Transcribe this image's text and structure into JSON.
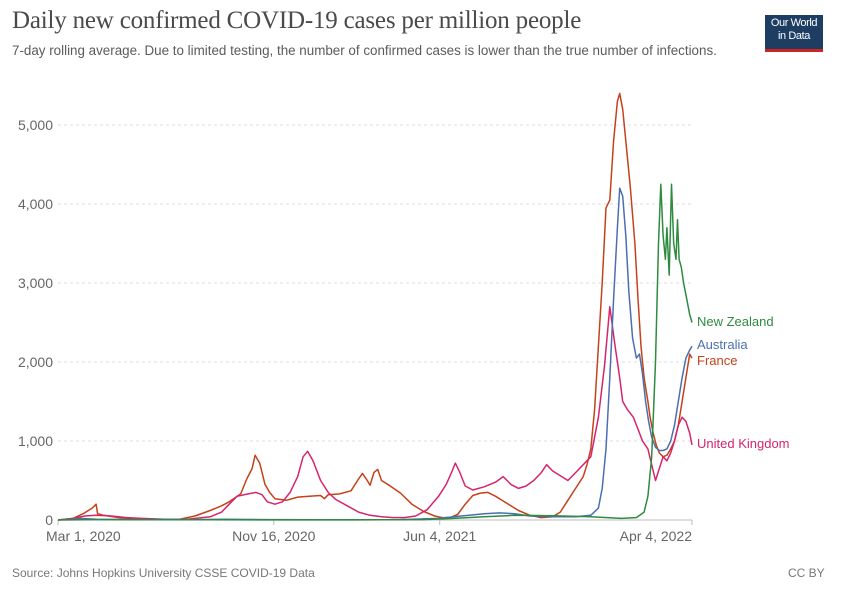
{
  "header": {
    "title": "Daily new confirmed COVID-19 cases per million people",
    "subtitle": "7-day rolling average. Due to limited testing, the number of confirmed cases is lower than the true number of infections.",
    "logo_line1": "Our World",
    "logo_line2": "in Data"
  },
  "footer": {
    "source": "Source: Johns Hopkins University CSSE COVID-19 Data",
    "license": "CC BY"
  },
  "colors": {
    "new_zealand": "#2e8b3f",
    "australia": "#4c6fb0",
    "france": "#c4421a",
    "united_kingdom": "#d6246e",
    "logo_bg": "#1d3d63",
    "logo_bar": "#ce261e"
  },
  "chart_data": {
    "type": "line",
    "title": "Daily new confirmed COVID-19 cases per million people",
    "subtitle": "7-day rolling average. Due to limited testing, the number of confirmed cases is lower than the true number of infections.",
    "xlabel": "",
    "ylabel": "",
    "x_unit": "days since Mar 1, 2020",
    "xlim": [
      0,
      764
    ],
    "ylim": [
      0,
      5500
    ],
    "grid": true,
    "legend": "inline-right",
    "x_ticks": [
      {
        "day": 0,
        "label": "Mar 1, 2020"
      },
      {
        "day": 260,
        "label": "Nov 16, 2020"
      },
      {
        "day": 460,
        "label": "Jun 4, 2021"
      },
      {
        "day": 764,
        "label": "Apr 4, 2022"
      }
    ],
    "y_ticks": [
      {
        "value": 0,
        "label": "0"
      },
      {
        "value": 1000,
        "label": "1,000"
      },
      {
        "value": 2000,
        "label": "2,000"
      },
      {
        "value": 3000,
        "label": "3,000"
      },
      {
        "value": 4000,
        "label": "4,000"
      },
      {
        "value": 5000,
        "label": "5,000"
      }
    ],
    "series": [
      {
        "name": "France",
        "key": "france",
        "label": "France",
        "points": [
          [
            0,
            0
          ],
          [
            20,
            20
          ],
          [
            35,
            90
          ],
          [
            45,
            150
          ],
          [
            50,
            200
          ],
          [
            52,
            80
          ],
          [
            60,
            60
          ],
          [
            80,
            30
          ],
          [
            100,
            10
          ],
          [
            130,
            5
          ],
          [
            160,
            10
          ],
          [
            180,
            50
          ],
          [
            200,
            120
          ],
          [
            215,
            180
          ],
          [
            225,
            230
          ],
          [
            240,
            330
          ],
          [
            248,
            520
          ],
          [
            255,
            650
          ],
          [
            259,
            820
          ],
          [
            265,
            720
          ],
          [
            272,
            450
          ],
          [
            278,
            350
          ],
          [
            285,
            270
          ],
          [
            300,
            250
          ],
          [
            315,
            290
          ],
          [
            330,
            300
          ],
          [
            345,
            310
          ],
          [
            350,
            270
          ],
          [
            355,
            320
          ],
          [
            370,
            330
          ],
          [
            385,
            370
          ],
          [
            395,
            520
          ],
          [
            400,
            590
          ],
          [
            405,
            520
          ],
          [
            410,
            440
          ],
          [
            415,
            600
          ],
          [
            420,
            640
          ],
          [
            425,
            500
          ],
          [
            435,
            440
          ],
          [
            450,
            340
          ],
          [
            465,
            200
          ],
          [
            480,
            110
          ],
          [
            495,
            50
          ],
          [
            505,
            30
          ],
          [
            515,
            30
          ],
          [
            525,
            70
          ],
          [
            535,
            200
          ],
          [
            545,
            310
          ],
          [
            555,
            340
          ],
          [
            565,
            350
          ],
          [
            575,
            300
          ],
          [
            585,
            240
          ],
          [
            595,
            180
          ],
          [
            605,
            120
          ],
          [
            620,
            60
          ],
          [
            635,
            30
          ],
          [
            650,
            40
          ],
          [
            660,
            100
          ],
          [
            670,
            250
          ],
          [
            680,
            400
          ],
          [
            690,
            550
          ],
          [
            695,
            700
          ],
          [
            700,
            900
          ],
          [
            705,
            1400
          ],
          [
            710,
            2200
          ],
          [
            715,
            3000
          ],
          [
            720,
            3950
          ],
          [
            725,
            4050
          ],
          [
            730,
            4800
          ],
          [
            735,
            5300
          ],
          [
            738,
            5400
          ],
          [
            742,
            5200
          ],
          [
            746,
            4800
          ],
          [
            752,
            4200
          ],
          [
            758,
            3500
          ],
          [
            762,
            2800
          ],
          [
            766,
            2200
          ],
          [
            770,
            1800
          ],
          [
            775,
            1500
          ],
          [
            778,
            1300
          ],
          [
            782,
            1100
          ],
          [
            786,
            950
          ],
          [
            790,
            850
          ],
          [
            795,
            800
          ],
          [
            800,
            820
          ],
          [
            805,
            900
          ],
          [
            810,
            1000
          ],
          [
            815,
            1200
          ],
          [
            820,
            1500
          ],
          [
            825,
            1800
          ],
          [
            830,
            2100
          ],
          [
            833,
            2050
          ]
        ]
      },
      {
        "name": "Australia",
        "key": "australia",
        "label": "Australia",
        "points": [
          [
            0,
            0
          ],
          [
            20,
            10
          ],
          [
            30,
            20
          ],
          [
            50,
            10
          ],
          [
            100,
            5
          ],
          [
            150,
            10
          ],
          [
            180,
            5
          ],
          [
            220,
            10
          ],
          [
            280,
            5
          ],
          [
            350,
            3
          ],
          [
            400,
            3
          ],
          [
            450,
            5
          ],
          [
            500,
            20
          ],
          [
            530,
            50
          ],
          [
            560,
            80
          ],
          [
            580,
            90
          ],
          [
            600,
            80
          ],
          [
            620,
            50
          ],
          [
            650,
            40
          ],
          [
            680,
            40
          ],
          [
            700,
            60
          ],
          [
            710,
            150
          ],
          [
            715,
            400
          ],
          [
            720,
            900
          ],
          [
            725,
            1800
          ],
          [
            730,
            2800
          ],
          [
            735,
            3700
          ],
          [
            738,
            4200
          ],
          [
            742,
            4100
          ],
          [
            746,
            3600
          ],
          [
            750,
            2900
          ],
          [
            755,
            2300
          ],
          [
            760,
            2050
          ],
          [
            764,
            2100
          ],
          [
            768,
            1850
          ],
          [
            772,
            1500
          ],
          [
            776,
            1250
          ],
          [
            780,
            1050
          ],
          [
            785,
            920
          ],
          [
            790,
            880
          ],
          [
            795,
            880
          ],
          [
            800,
            900
          ],
          [
            805,
            1000
          ],
          [
            810,
            1200
          ],
          [
            815,
            1500
          ],
          [
            820,
            1800
          ],
          [
            825,
            2050
          ],
          [
            830,
            2150
          ],
          [
            833,
            2200
          ]
        ]
      },
      {
        "name": "New Zealand",
        "key": "new_zealand",
        "label": "New Zealand",
        "points": [
          [
            0,
            0
          ],
          [
            50,
            5
          ],
          [
            100,
            3
          ],
          [
            200,
            2
          ],
          [
            300,
            1
          ],
          [
            400,
            1
          ],
          [
            480,
            5
          ],
          [
            520,
            20
          ],
          [
            560,
            40
          ],
          [
            600,
            60
          ],
          [
            650,
            55
          ],
          [
            700,
            40
          ],
          [
            740,
            20
          ],
          [
            760,
            30
          ],
          [
            770,
            100
          ],
          [
            775,
            300
          ],
          [
            780,
            800
          ],
          [
            785,
            2000
          ],
          [
            789,
            3500
          ],
          [
            792,
            4250
          ],
          [
            795,
            3600
          ],
          [
            798,
            3300
          ],
          [
            800,
            3700
          ],
          [
            803,
            3100
          ],
          [
            806,
            4250
          ],
          [
            809,
            3500
          ],
          [
            812,
            3300
          ],
          [
            814,
            3800
          ],
          [
            816,
            3300
          ],
          [
            819,
            3200
          ],
          [
            822,
            3000
          ],
          [
            826,
            2800
          ],
          [
            830,
            2600
          ],
          [
            833,
            2500
          ]
        ]
      },
      {
        "name": "United Kingdom",
        "key": "united_kingdom",
        "label": "United Kingdom",
        "points": [
          [
            0,
            0
          ],
          [
            20,
            20
          ],
          [
            35,
            50
          ],
          [
            50,
            60
          ],
          [
            70,
            50
          ],
          [
            90,
            30
          ],
          [
            110,
            20
          ],
          [
            140,
            10
          ],
          [
            170,
            10
          ],
          [
            200,
            40
          ],
          [
            215,
            100
          ],
          [
            225,
            200
          ],
          [
            235,
            300
          ],
          [
            250,
            330
          ],
          [
            260,
            350
          ],
          [
            268,
            320
          ],
          [
            275,
            230
          ],
          [
            285,
            200
          ],
          [
            295,
            230
          ],
          [
            305,
            350
          ],
          [
            315,
            550
          ],
          [
            322,
            800
          ],
          [
            328,
            870
          ],
          [
            335,
            750
          ],
          [
            345,
            500
          ],
          [
            355,
            350
          ],
          [
            365,
            260
          ],
          [
            380,
            180
          ],
          [
            395,
            100
          ],
          [
            410,
            60
          ],
          [
            425,
            40
          ],
          [
            440,
            30
          ],
          [
            455,
            30
          ],
          [
            470,
            50
          ],
          [
            485,
            130
          ],
          [
            500,
            300
          ],
          [
            510,
            450
          ],
          [
            517,
            600
          ],
          [
            522,
            720
          ],
          [
            528,
            600
          ],
          [
            535,
            430
          ],
          [
            545,
            380
          ],
          [
            560,
            420
          ],
          [
            575,
            480
          ],
          [
            585,
            550
          ],
          [
            595,
            450
          ],
          [
            605,
            400
          ],
          [
            615,
            430
          ],
          [
            625,
            500
          ],
          [
            635,
            600
          ],
          [
            642,
            700
          ],
          [
            650,
            620
          ],
          [
            660,
            560
          ],
          [
            670,
            500
          ],
          [
            680,
            600
          ],
          [
            690,
            700
          ],
          [
            700,
            800
          ],
          [
            710,
            1300
          ],
          [
            718,
            1950
          ],
          [
            725,
            2700
          ],
          [
            732,
            2200
          ],
          [
            738,
            1800
          ],
          [
            742,
            1500
          ],
          [
            748,
            1400
          ],
          [
            756,
            1300
          ],
          [
            762,
            1150
          ],
          [
            768,
            1000
          ],
          [
            775,
            900
          ],
          [
            780,
            700
          ],
          [
            785,
            500
          ],
          [
            790,
            650
          ],
          [
            795,
            800
          ],
          [
            800,
            750
          ],
          [
            805,
            850
          ],
          [
            810,
            1000
          ],
          [
            815,
            1200
          ],
          [
            820,
            1300
          ],
          [
            825,
            1250
          ],
          [
            830,
            1100
          ],
          [
            833,
            950
          ]
        ]
      }
    ]
  }
}
